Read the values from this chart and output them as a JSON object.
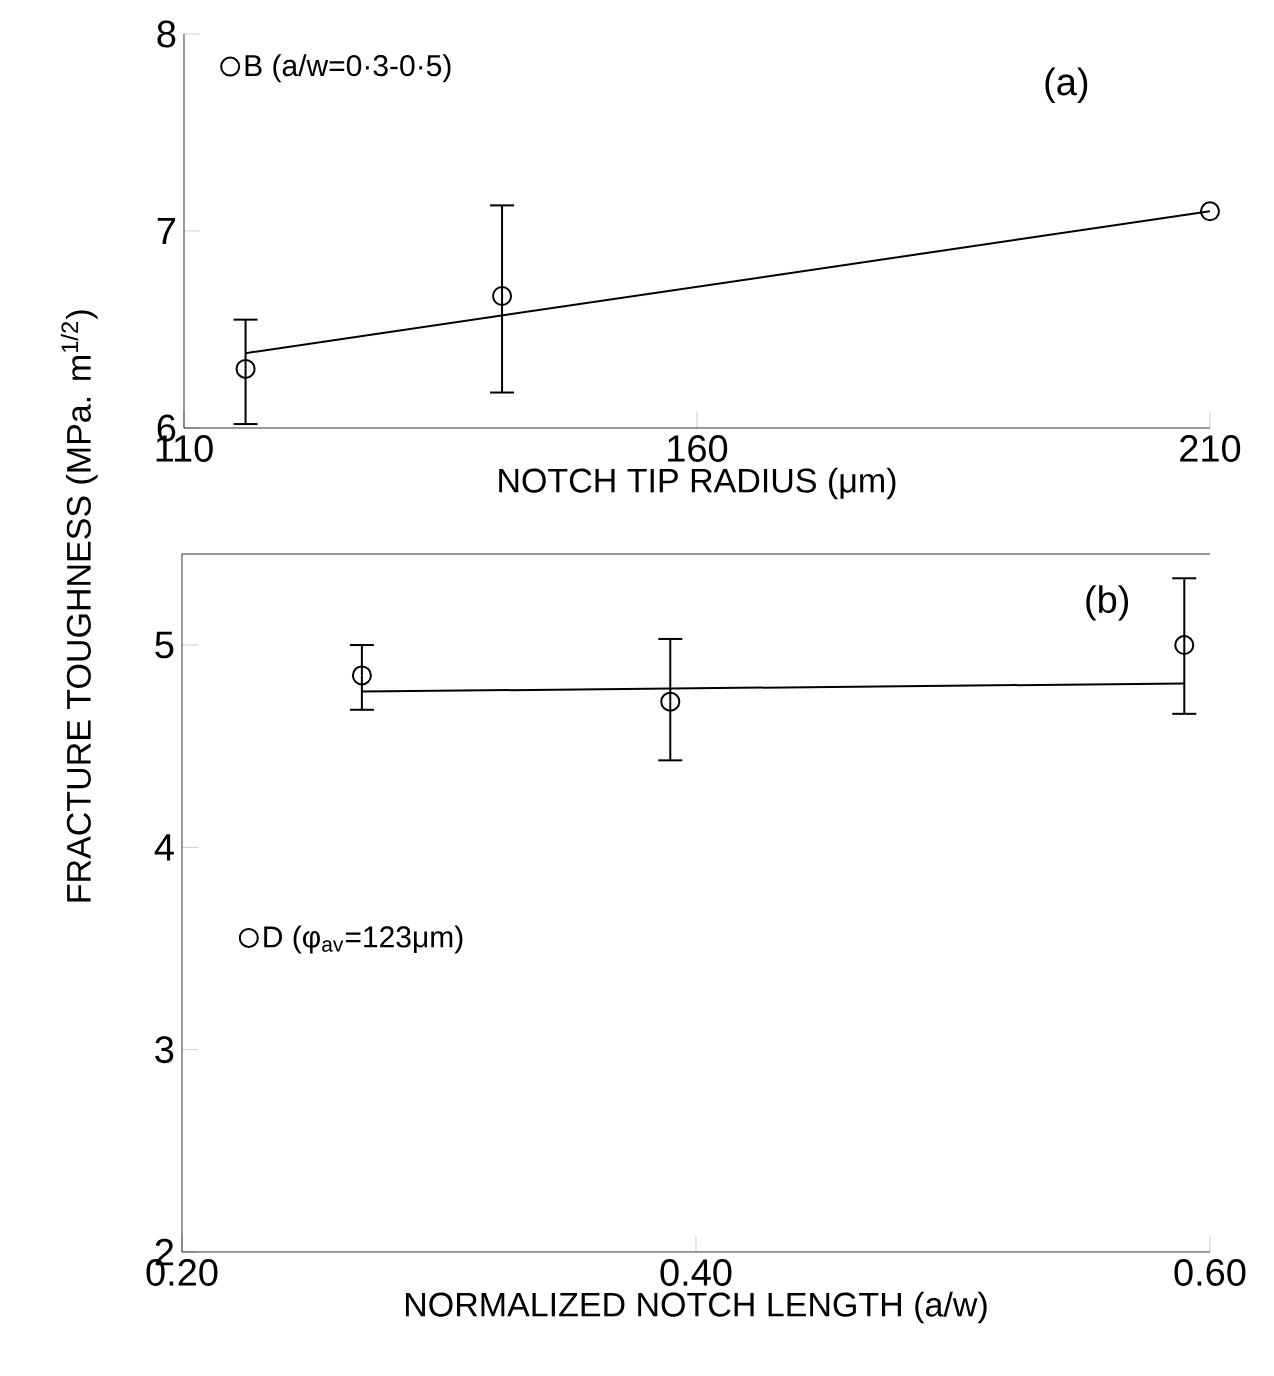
{
  "chart_data": [
    {
      "type": "scatter",
      "xlabel": "NOTCH TIP RADIUS (μm)",
      "legend": "top left",
      "annotations": [
        "(a)"
      ],
      "xlim": [
        110,
        210
      ],
      "ylim": [
        6,
        8
      ],
      "xticks": [
        110,
        160,
        210
      ],
      "yticks": [
        6,
        7,
        8
      ],
      "series": [
        {
          "name": "B (a/w=0·3-0·5)",
          "marker": "circle",
          "color": "#000000",
          "x": [
            116,
            141,
            210
          ],
          "values": [
            6.3,
            6.67,
            7.1
          ],
          "errors": [
            [
              6.02,
              6.55
            ],
            [
              6.18,
              7.13
            ],
            null
          ]
        },
        {
          "type": "line",
          "color": "#000000",
          "x": [
            116,
            210
          ],
          "values": [
            6.38,
            7.1
          ]
        }
      ]
    },
    {
      "type": "scatter",
      "xlabel": "NORMALIZED NOTCH LENGTH (a/w)",
      "ylabel": "FRACTURE TOUGHNESS (MPa. m$^{1/2}$)",
      "legend": "left",
      "annotations": [
        "(b)"
      ],
      "xlim": [
        0.2,
        0.6
      ],
      "ylim": [
        2,
        5.45
      ],
      "xticks": [
        {
          "value": 0.2,
          "label": "0.20"
        },
        {
          "value": 0.4,
          "label": "0.40"
        },
        {
          "value": 0.6,
          "label": "0.60"
        }
      ],
      "yticks": [
        2,
        3,
        4,
        5
      ],
      "series": [
        {
          "name": "D (φ$_{av}$=123μm)",
          "marker": "circle",
          "color": "#000000",
          "x": [
            0.27,
            0.39,
            0.59
          ],
          "values": [
            4.85,
            4.72,
            5.0
          ],
          "errors": [
            [
              4.68,
              5.0
            ],
            [
              4.43,
              5.03
            ],
            [
              4.66,
              5.33
            ]
          ]
        },
        {
          "type": "line",
          "color": "#000000",
          "x": [
            0.27,
            0.59
          ],
          "values": [
            4.77,
            4.81
          ]
        }
      ]
    }
  ]
}
